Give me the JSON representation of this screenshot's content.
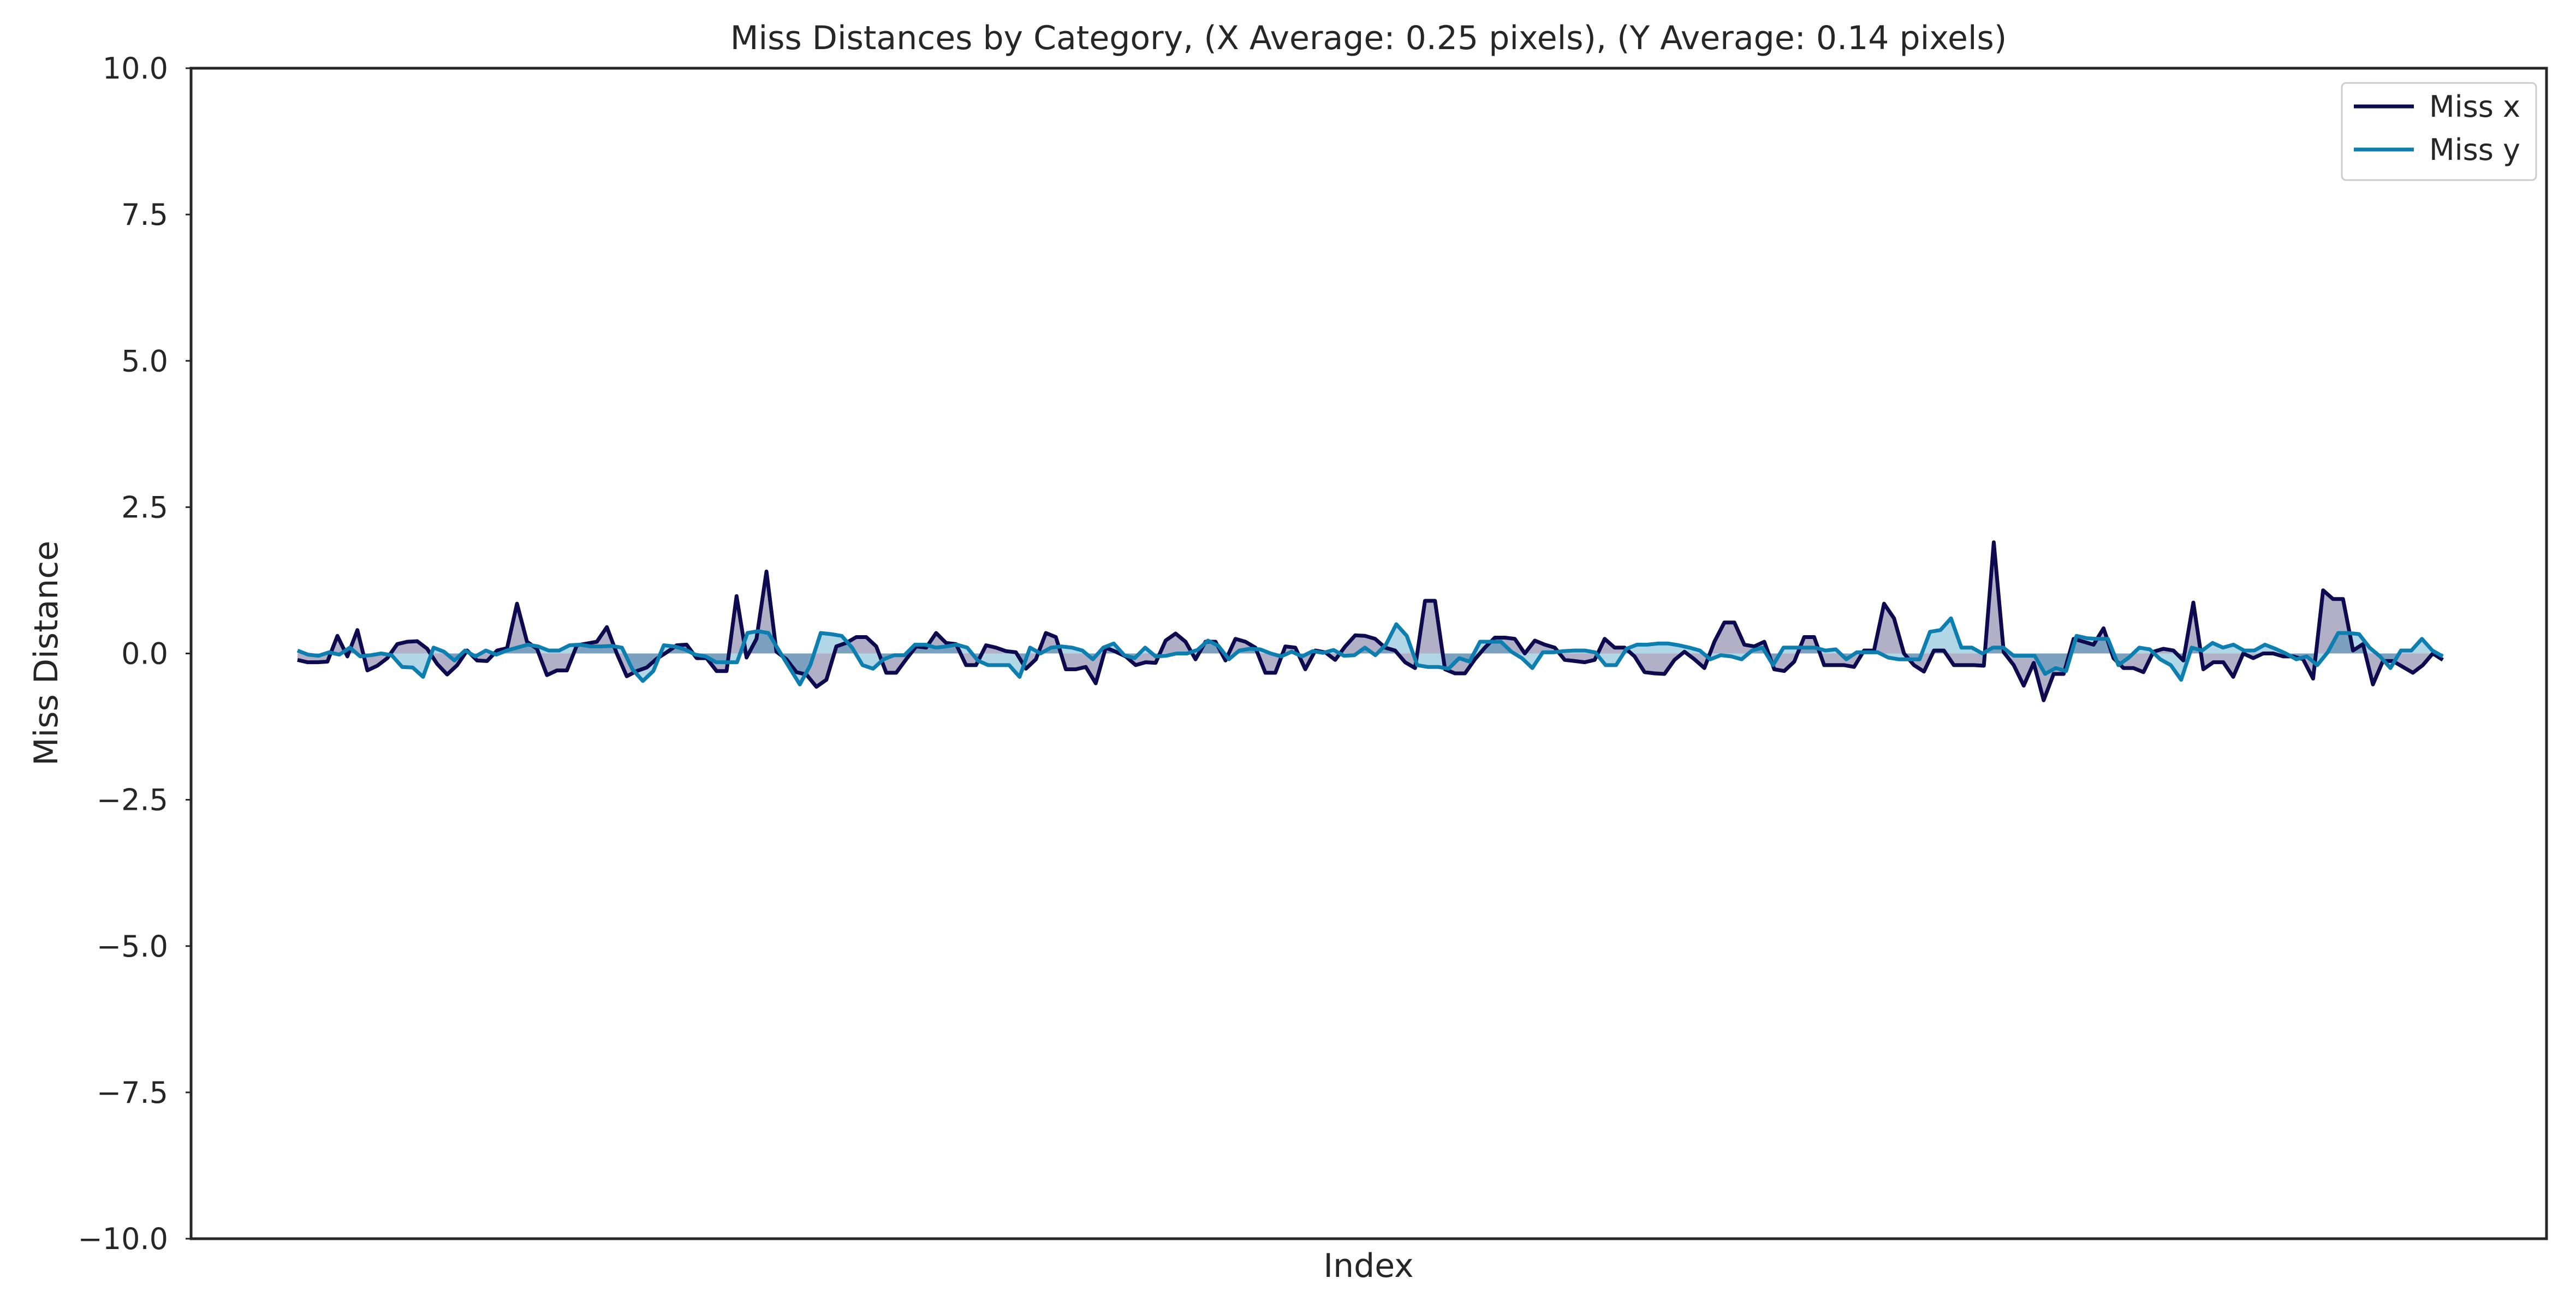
{
  "chart_data": {
    "type": "line",
    "title": "Miss Distances by Category, (X Average: 0.25 pixels), (Y Average: 0.14 pixels)",
    "xlabel": "Index",
    "ylabel": "Miss Distance",
    "ylim": [
      -10,
      10
    ],
    "yticks": [
      "10.0",
      "7.5",
      "5.0",
      "2.5",
      "0.0",
      "−2.5",
      "−5.0",
      "−7.5",
      "−10.0"
    ],
    "ytick_values": [
      10,
      7.5,
      5,
      2.5,
      0,
      -2.5,
      -5,
      -7.5,
      -10
    ],
    "x_ticks_shown": false,
    "grid": false,
    "legend_position": "top-right",
    "fill_to_zero": true,
    "series": [
      {
        "name": "Miss x",
        "color": "#0d0a4f",
        "values": [
          -0.11,
          -0.15,
          -0.15,
          -0.14,
          0.3,
          -0.05,
          0.4,
          -0.29,
          -0.21,
          -0.08,
          0.16,
          0.2,
          0.21,
          0.08,
          -0.18,
          -0.36,
          -0.2,
          0.05,
          -0.12,
          -0.13,
          0.05,
          0.09,
          0.85,
          0.2,
          0.08,
          -0.37,
          -0.29,
          -0.29,
          0.14,
          0.17,
          0.2,
          0.45,
          0.0,
          -0.39,
          -0.3,
          -0.24,
          -0.09,
          0.02,
          0.14,
          0.15,
          -0.08,
          -0.08,
          -0.3,
          -0.3,
          0.98,
          -0.07,
          0.25,
          1.4,
          0.03,
          -0.1,
          -0.32,
          -0.36,
          -0.57,
          -0.45,
          0.12,
          0.18,
          0.28,
          0.28,
          0.12,
          -0.33,
          -0.33,
          -0.1,
          0.12,
          0.1,
          0.35,
          0.18,
          0.16,
          -0.2,
          -0.2,
          0.14,
          0.1,
          0.04,
          0.02,
          -0.26,
          -0.1,
          0.35,
          0.28,
          -0.27,
          -0.27,
          -0.23,
          -0.51,
          0.1,
          0.03,
          -0.05,
          -0.2,
          -0.15,
          -0.16,
          0.22,
          0.34,
          0.2,
          -0.1,
          0.2,
          0.2,
          -0.12,
          0.25,
          0.2,
          0.1,
          -0.33,
          -0.33,
          0.12,
          0.1,
          -0.27,
          0.05,
          0.02,
          -0.11,
          0.12,
          0.31,
          0.3,
          0.25,
          0.1,
          0.05,
          -0.15,
          -0.25,
          0.9,
          0.9,
          -0.27,
          -0.34,
          -0.34,
          -0.1,
          0.1,
          0.27,
          0.27,
          0.25,
          0.0,
          0.22,
          0.15,
          0.1,
          -0.11,
          -0.13,
          -0.15,
          -0.11,
          0.25,
          0.1,
          0.1,
          -0.05,
          -0.32,
          -0.34,
          -0.35,
          -0.11,
          0.03,
          -0.1,
          -0.25,
          0.2,
          0.53,
          0.53,
          0.15,
          0.12,
          0.2,
          -0.27,
          -0.3,
          -0.14,
          0.28,
          0.28,
          -0.2,
          -0.2,
          -0.2,
          -0.23,
          0.05,
          0.05,
          0.85,
          0.6,
          0.0,
          -0.2,
          -0.31,
          0.05,
          0.05,
          -0.2,
          -0.2,
          -0.2,
          -0.21,
          1.9,
          0.02,
          -0.2,
          -0.55,
          -0.16,
          -0.8,
          -0.35,
          -0.35,
          0.25,
          0.2,
          0.15,
          0.43,
          -0.08,
          -0.25,
          -0.25,
          -0.32,
          0.03,
          0.08,
          0.05,
          -0.12,
          0.87,
          -0.27,
          -0.15,
          -0.15,
          -0.4,
          0.0,
          -0.08,
          0.0,
          0.0,
          -0.05,
          -0.05,
          -0.1,
          -0.43,
          1.08,
          0.93,
          0.93,
          0.05,
          0.16,
          -0.53,
          -0.13,
          -0.13,
          -0.23,
          -0.33,
          -0.2,
          0.0,
          -0.11
        ]
      },
      {
        "name": "Miss y",
        "color": "#0c7fb0",
        "values": [
          0.05,
          -0.02,
          -0.04,
          0.02,
          -0.02,
          0.1,
          -0.05,
          -0.03,
          0.0,
          -0.03,
          -0.23,
          -0.24,
          -0.4,
          0.1,
          0.03,
          -0.12,
          0.05,
          -0.05,
          0.05,
          -0.02,
          0.05,
          0.1,
          0.15,
          0.12,
          0.05,
          0.05,
          0.14,
          0.15,
          0.12,
          0.12,
          0.13,
          0.1,
          -0.27,
          -0.47,
          -0.3,
          0.14,
          0.12,
          0.07,
          -0.02,
          -0.05,
          -0.15,
          -0.15,
          -0.15,
          0.35,
          0.38,
          0.35,
          0.05,
          -0.24,
          -0.53,
          -0.2,
          0.35,
          0.33,
          0.3,
          0.1,
          -0.2,
          -0.26,
          -0.1,
          -0.03,
          -0.03,
          0.15,
          0.15,
          0.1,
          0.12,
          0.15,
          0.1,
          -0.12,
          -0.2,
          -0.2,
          -0.2,
          -0.4,
          0.1,
          0.0,
          0.1,
          0.12,
          0.1,
          0.05,
          -0.1,
          0.1,
          0.17,
          -0.03,
          -0.08,
          0.1,
          -0.05,
          -0.04,
          0.0,
          0.0,
          0.06,
          0.22,
          0.13,
          -0.1,
          0.05,
          0.08,
          0.07,
          0.0,
          -0.05,
          0.03,
          -0.05,
          0.04,
          0.01,
          0.06,
          -0.04,
          -0.03,
          0.1,
          -0.03,
          0.15,
          0.5,
          0.3,
          -0.2,
          -0.23,
          -0.23,
          -0.26,
          -0.08,
          -0.14,
          0.2,
          0.2,
          0.2,
          0.03,
          -0.08,
          -0.25,
          0.02,
          0.02,
          0.04,
          0.05,
          0.05,
          0.02,
          -0.2,
          -0.2,
          0.08,
          0.15,
          0.15,
          0.17,
          0.17,
          0.14,
          0.1,
          0.05,
          -0.1,
          -0.03,
          -0.05,
          -0.1,
          0.05,
          0.1,
          -0.2,
          0.1,
          0.1,
          0.1,
          0.1,
          0.05,
          0.07,
          -0.1,
          0.02,
          0.02,
          0.02,
          -0.07,
          -0.1,
          -0.1,
          -0.1,
          0.37,
          0.4,
          0.6,
          0.1,
          0.1,
          0.0,
          0.1,
          0.1,
          -0.04,
          -0.04,
          -0.04,
          -0.35,
          -0.25,
          -0.3,
          0.3,
          0.26,
          0.25,
          0.25,
          -0.2,
          -0.07,
          0.1,
          0.07,
          -0.1,
          -0.2,
          -0.45,
          0.1,
          0.05,
          0.18,
          0.1,
          0.15,
          0.05,
          0.05,
          0.15,
          0.08,
          0.0,
          -0.1,
          -0.05,
          -0.2,
          0.02,
          0.35,
          0.35,
          0.33,
          0.1,
          -0.05,
          -0.25,
          0.05,
          0.05,
          0.25,
          0.05,
          -0.05
        ]
      }
    ]
  }
}
